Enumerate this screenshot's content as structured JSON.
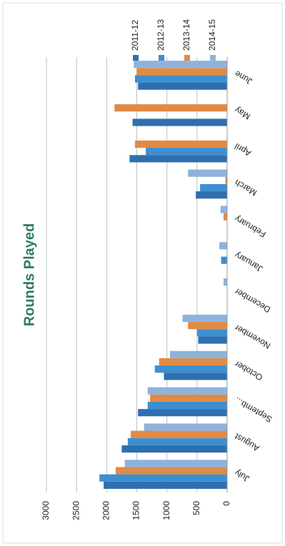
{
  "chart_data": {
    "type": "bar",
    "title": "Rounds Played",
    "categories": [
      "July",
      "August",
      "Septemb...",
      "October",
      "November",
      "December",
      "January",
      "February",
      "March",
      "April",
      "May",
      "June"
    ],
    "series": [
      {
        "name": "2011-12",
        "color": "#2e6fb0",
        "values": [
          2050,
          1750,
          1480,
          1050,
          480,
          0,
          0,
          0,
          520,
          1620,
          1570,
          1480
        ]
      },
      {
        "name": "2012-13",
        "color": "#3d8fd0",
        "values": [
          2120,
          1650,
          1320,
          1200,
          500,
          0,
          100,
          0,
          450,
          1350,
          0,
          1530
        ]
      },
      {
        "name": "2013-14",
        "color": "#e08a45",
        "values": [
          1850,
          1600,
          1280,
          1130,
          650,
          0,
          0,
          60,
          30,
          1530,
          1870,
          1500
        ]
      },
      {
        "name": "2014-15",
        "color": "#8db3dd",
        "values": [
          1700,
          1380,
          1320,
          950,
          740,
          60,
          130,
          110,
          650,
          0,
          0,
          1550
        ]
      }
    ],
    "ylim": [
      0,
      3000
    ],
    "yticks": [
      0,
      500,
      1000,
      1500,
      2000,
      2500,
      3000
    ],
    "grid": true,
    "legend": "right"
  }
}
